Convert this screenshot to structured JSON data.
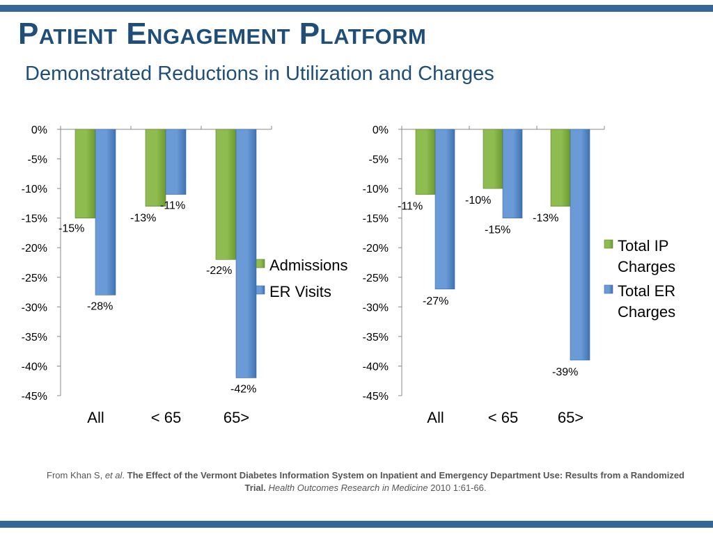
{
  "title": "Patient Engagement Platform",
  "subtitle": "Demonstrated Reductions in Utilization and Charges",
  "colors": {
    "band": "#336699",
    "title": "#1f4e79",
    "green": "#77a33a",
    "blue": "#4f81bd"
  },
  "citation": {
    "prefix": "From Khan S, ",
    "etal": "et al",
    "dot": ". ",
    "article": "The Effect of the Vermont Diabetes Information System on Inpatient and Emergency Department Use: Results from a Randomized Trial.",
    "journal": "Health Outcomes Research in Medicine",
    "details": "2010 1:61-66."
  },
  "chart_data": [
    {
      "type": "bar",
      "categories": [
        "All",
        "< 65",
        "65>"
      ],
      "series": [
        {
          "name": "Admissions",
          "values": [
            -15,
            -13,
            -22
          ],
          "labels": [
            "-15%",
            "-13%",
            "-22%"
          ]
        },
        {
          "name": "ER Visits",
          "values": [
            -28,
            -11,
            -42
          ],
          "labels": [
            "-28%",
            "-11%",
            "-42%"
          ]
        }
      ],
      "yticks": [
        "0%",
        "-5%",
        "-10%",
        "-15%",
        "-20%",
        "-25%",
        "-30%",
        "-35%",
        "-40%",
        "-45%"
      ],
      "ylim": [
        -45,
        0
      ],
      "legend": "right"
    },
    {
      "type": "bar",
      "categories": [
        "All",
        "< 65",
        "65>"
      ],
      "series": [
        {
          "name": "Total IP Charges",
          "values": [
            -11,
            -10,
            -13
          ],
          "labels": [
            "-11%",
            "-10%",
            "-13%"
          ]
        },
        {
          "name": "Total ER Charges",
          "values": [
            -27,
            -15,
            -39
          ],
          "labels": [
            "-27%",
            "-15%",
            "-39%"
          ]
        }
      ],
      "yticks": [
        "0%",
        "-5%",
        "-10%",
        "-15%",
        "-20%",
        "-25%",
        "-30%",
        "-35%",
        "-40%",
        "-45%"
      ],
      "ylim": [
        -45,
        0
      ],
      "legend": "right"
    }
  ]
}
